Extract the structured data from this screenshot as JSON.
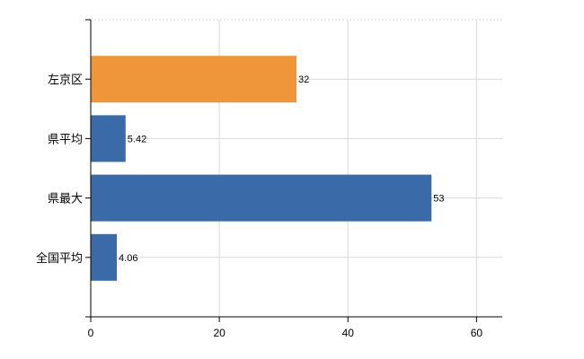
{
  "chart_data": {
    "type": "bar",
    "orientation": "horizontal",
    "title": "",
    "xlabel": "",
    "ylabel": "",
    "categories": [
      "左京区",
      "県平均",
      "県最大",
      "全国平均"
    ],
    "values": [
      32,
      5.42,
      53,
      4.06
    ],
    "data_labels": [
      "32",
      "5.42",
      "53",
      "4.06"
    ],
    "xlim": [
      0,
      64
    ],
    "x_ticks": [
      0,
      20,
      40,
      60
    ],
    "x_tick_labels": [
      "0",
      "20",
      "40",
      "60"
    ],
    "grid": true,
    "legend": "none",
    "colors": {
      "highlight": "#f0963a",
      "default": "#3a6aa8",
      "grid": "#d9d9d9",
      "axis": "#000000"
    },
    "bar_colors": [
      "#f0963a",
      "#3a6aa8",
      "#3a6aa8",
      "#3a6aa8"
    ]
  }
}
